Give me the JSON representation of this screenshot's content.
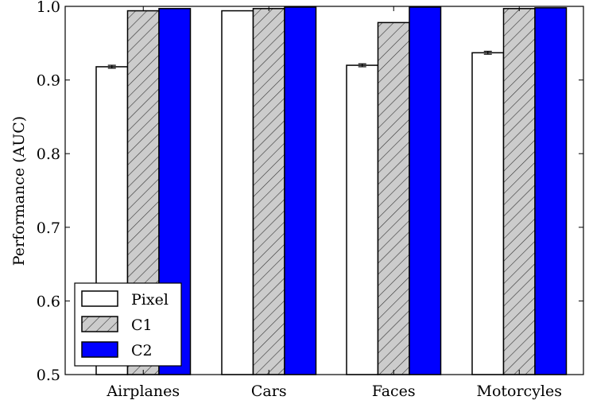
{
  "chart_data": {
    "type": "bar",
    "title": "",
    "xlabel": "",
    "ylabel": "Performance (AUC)",
    "ylim": [
      0.5,
      1.0
    ],
    "yticks": [
      "0.5",
      "0.6",
      "0.7",
      "0.8",
      "0.9",
      "1.0"
    ],
    "categories": [
      "Airplanes",
      "Cars",
      "Faces",
      "Motorcyles"
    ],
    "series": [
      {
        "name": "Pixel",
        "values": [
          0.918,
          0.994,
          0.92,
          0.937
        ],
        "errors": [
          0.002,
          0,
          0.002,
          0.002
        ],
        "color": "#ffffff",
        "hatch": "none"
      },
      {
        "name": "C1",
        "values": [
          0.994,
          0.997,
          0.978,
          0.997
        ],
        "errors": [
          0,
          0,
          0,
          0
        ],
        "color": "#cccccc",
        "hatch": "diagonal"
      },
      {
        "name": "C2",
        "values": [
          0.997,
          0.999,
          0.999,
          0.998
        ],
        "errors": [
          0,
          0,
          0,
          0
        ],
        "color": "#0000ff",
        "hatch": "none"
      }
    ],
    "grid": false,
    "legend": "lower-left"
  }
}
